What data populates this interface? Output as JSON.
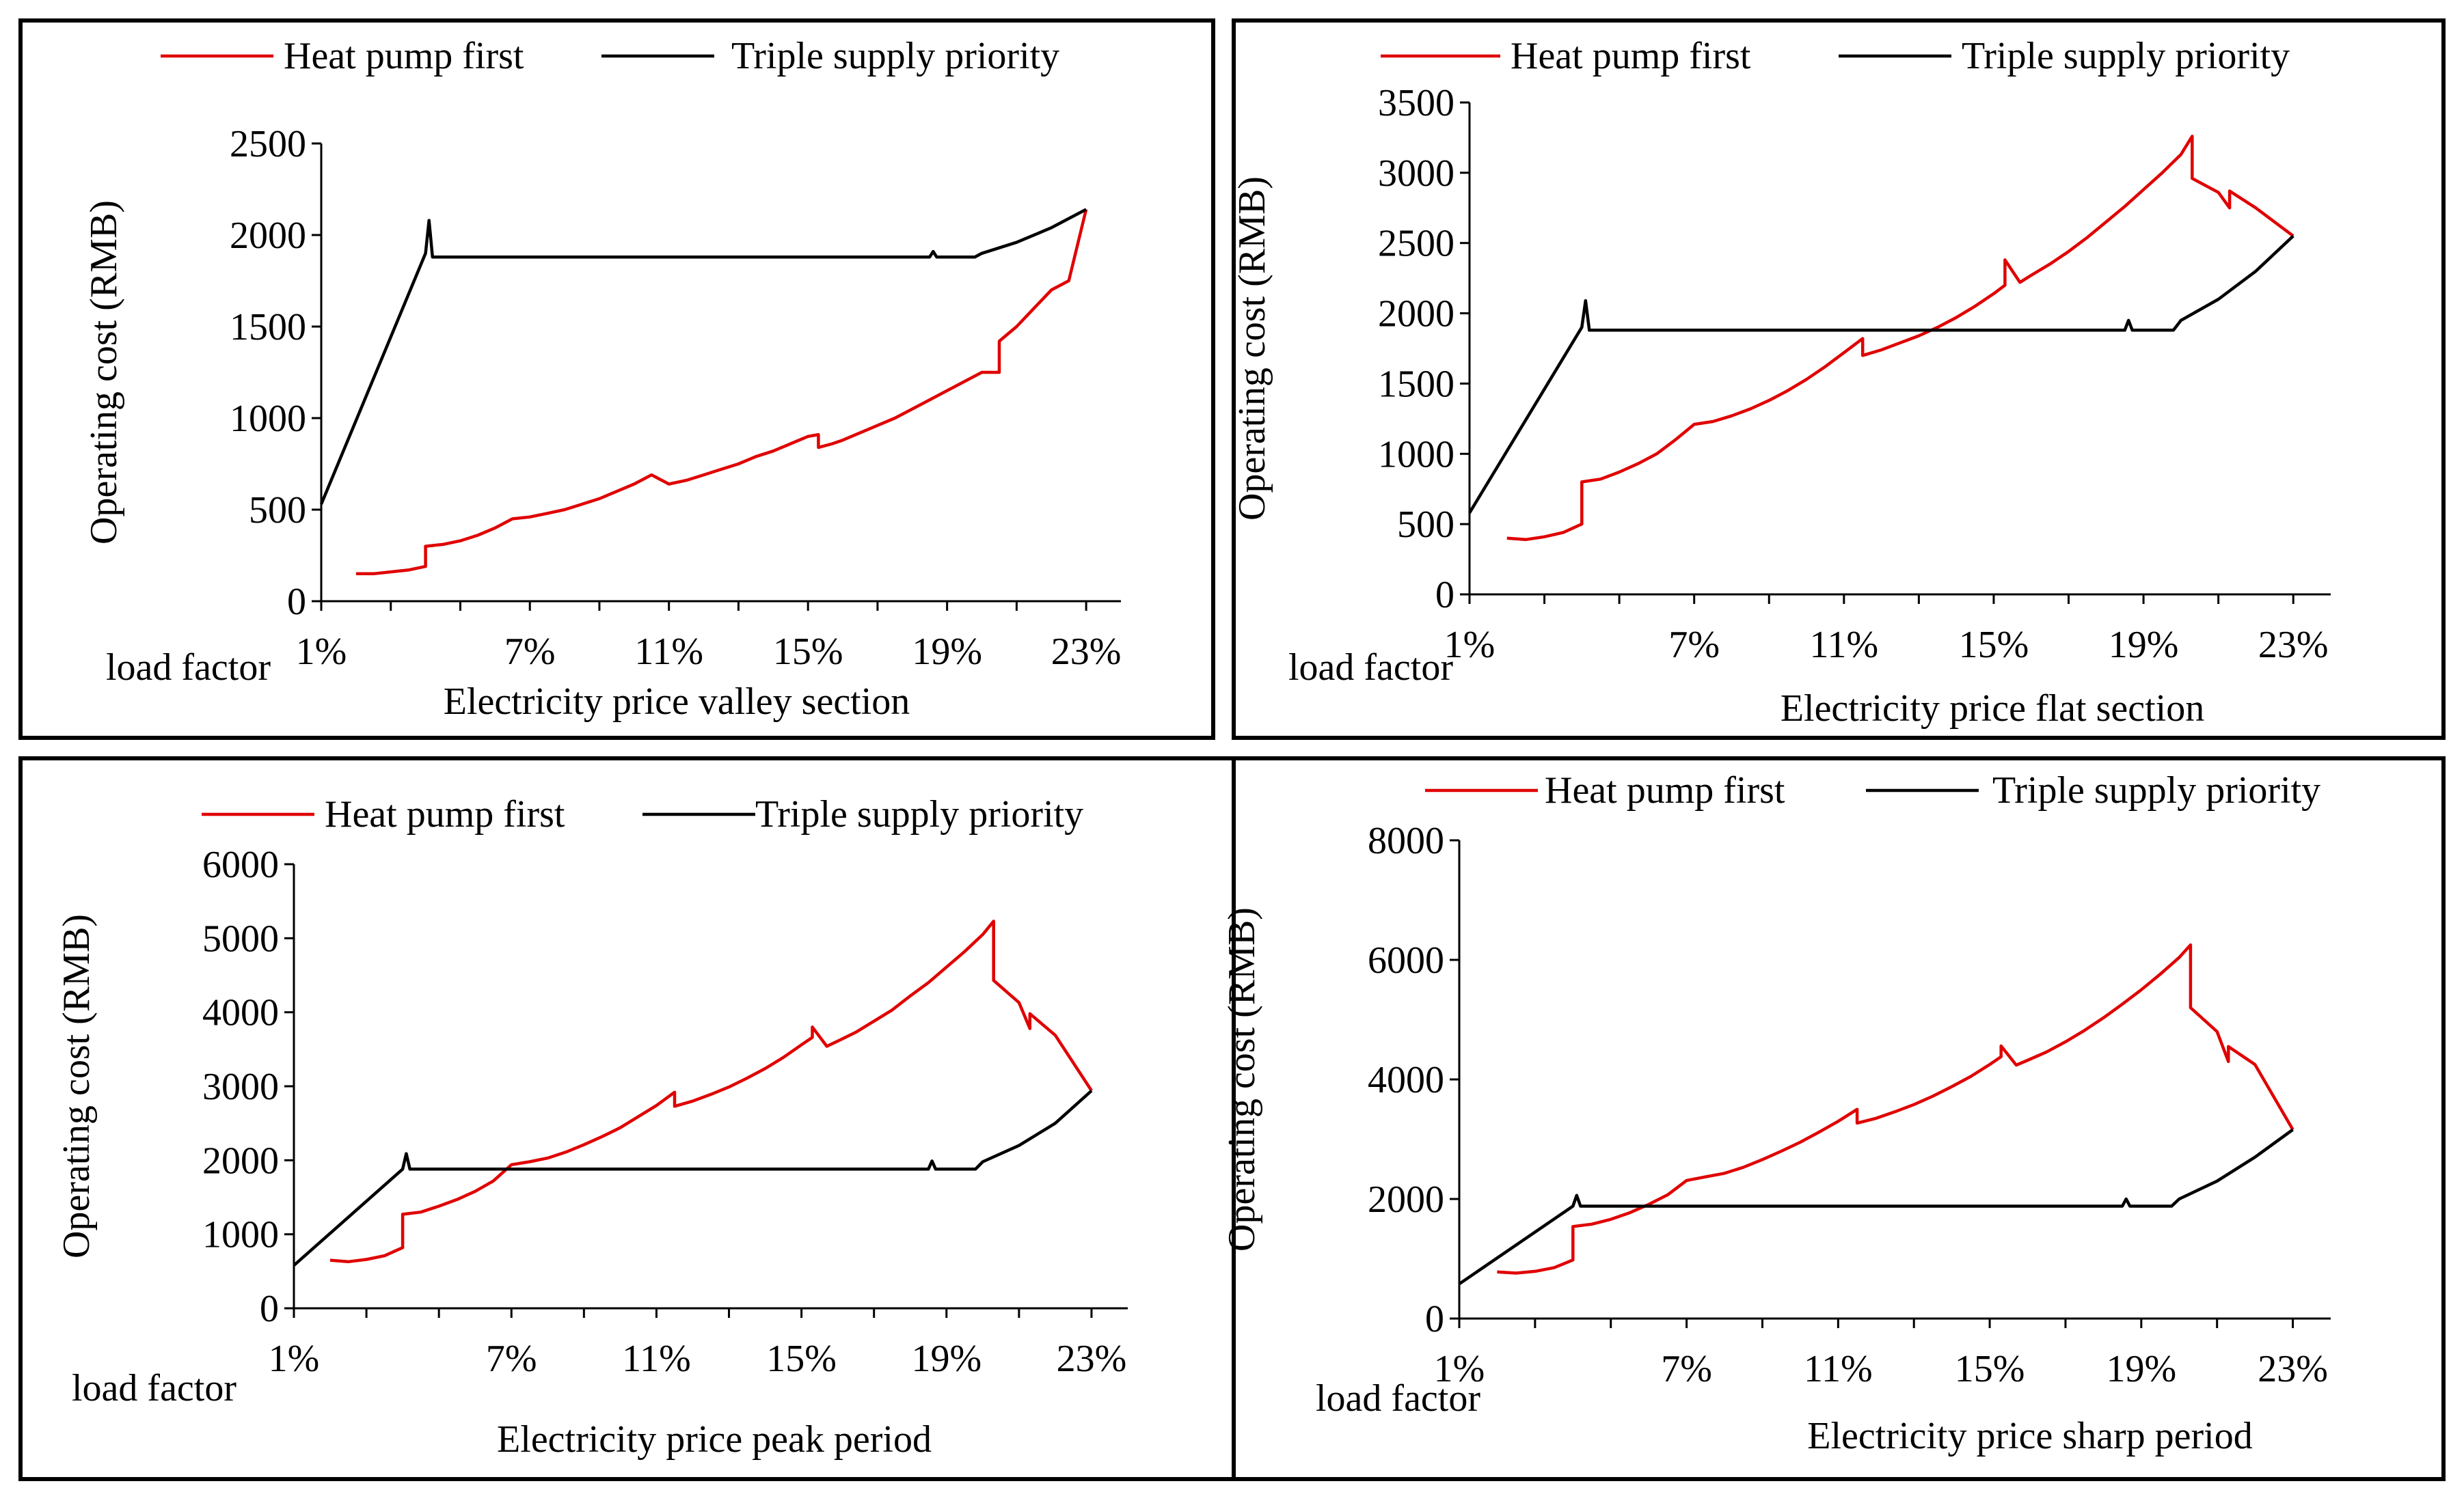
{
  "chart_data": [
    {
      "type": "line",
      "panel": "top-left",
      "xlabel": "Electricity price valley section",
      "x_category_label": "load factor",
      "ylabel": "Operating cost (RMB)",
      "x_tick_labels": [
        "1%",
        "7%",
        "11%",
        "15%",
        "19%",
        "23%"
      ],
      "x_tick_values": [
        1,
        7,
        11,
        15,
        19,
        23
      ],
      "xlim": [
        1,
        24
      ],
      "y_ticks": [
        0,
        500,
        1000,
        1500,
        2000,
        2500
      ],
      "ylim": [
        0,
        2500
      ],
      "legend_position": "top",
      "series": [
        {
          "name": "Heat pump first",
          "color": "#E00000",
          "x": [
            2,
            2.5,
            3,
            3.5,
            4,
            4,
            4.5,
            5,
            5.5,
            6,
            6.5,
            7,
            7.5,
            8,
            8.5,
            9,
            9.5,
            10,
            10.5,
            11,
            11.5,
            11.5,
            12,
            12.5,
            13,
            13.5,
            14,
            14.5,
            15,
            15.3,
            15.3,
            15.7,
            16,
            16.5,
            17,
            17.5,
            18,
            18.5,
            19,
            19.5,
            20,
            20.5,
            20.5,
            21,
            21.5,
            22,
            22.5,
            23
          ],
          "y": [
            150,
            150,
            160,
            170,
            190,
            300,
            310,
            330,
            360,
            400,
            450,
            460,
            480,
            500,
            530,
            560,
            600,
            640,
            690,
            640,
            660,
            660,
            690,
            720,
            750,
            790,
            820,
            860,
            900,
            910,
            840,
            860,
            880,
            920,
            960,
            1000,
            1050,
            1100,
            1150,
            1200,
            1250,
            1250,
            1420,
            1500,
            1600,
            1700,
            1750,
            2140
          ]
        },
        {
          "name": "Triple supply priority",
          "color": "#000000",
          "x": [
            1,
            4,
            4.1,
            4.2,
            18.5,
            18.6,
            18.7,
            19.8,
            20,
            21,
            22,
            23
          ],
          "y": [
            530,
            1900,
            2080,
            1880,
            1880,
            1910,
            1880,
            1880,
            1900,
            1960,
            2040,
            2140
          ]
        }
      ]
    },
    {
      "type": "line",
      "panel": "top-right",
      "xlabel": "Electricity price flat section",
      "x_category_label": "load factor",
      "ylabel": "Operating cost (RMB)",
      "x_tick_labels": [
        "1%",
        "7%",
        "11%",
        "15%",
        "19%",
        "23%"
      ],
      "x_tick_values": [
        1,
        7,
        11,
        15,
        19,
        23
      ],
      "xlim": [
        1,
        24
      ],
      "y_ticks": [
        0,
        500,
        1000,
        1500,
        2000,
        2500,
        3000,
        3500
      ],
      "ylim": [
        0,
        3500
      ],
      "legend_position": "top",
      "series": [
        {
          "name": "Heat pump first",
          "color": "#E00000",
          "x": [
            2,
            2.5,
            3,
            3.5,
            4,
            4,
            4.5,
            5,
            5.5,
            6,
            6.5,
            7,
            7.5,
            8,
            8.5,
            9,
            9.5,
            10,
            10.5,
            11,
            11.5,
            11.5,
            12,
            12.5,
            13,
            13.5,
            14,
            14.5,
            15,
            15.3,
            15.3,
            15.7,
            16,
            16.5,
            17,
            17.5,
            18,
            18.5,
            19,
            19.5,
            20,
            20.3,
            20.3,
            21,
            21.3,
            21.3,
            22,
            23
          ],
          "y": [
            400,
            390,
            410,
            440,
            500,
            800,
            820,
            870,
            930,
            1000,
            1100,
            1210,
            1230,
            1270,
            1320,
            1380,
            1450,
            1530,
            1620,
            1720,
            1820,
            1700,
            1740,
            1790,
            1840,
            1900,
            1970,
            2050,
            2140,
            2200,
            2380,
            2220,
            2270,
            2350,
            2440,
            2540,
            2650,
            2760,
            2880,
            3000,
            3130,
            3260,
            2960,
            2860,
            2750,
            2870,
            2750,
            2550
          ]
        },
        {
          "name": "Triple supply priority",
          "color": "#000000",
          "x": [
            1,
            4,
            4.1,
            4.2,
            18.5,
            18.6,
            18.7,
            19.8,
            20,
            21,
            22,
            23
          ],
          "y": [
            580,
            1900,
            2090,
            1880,
            1880,
            1950,
            1880,
            1880,
            1950,
            2100,
            2300,
            2550
          ]
        }
      ]
    },
    {
      "type": "line",
      "panel": "bottom-left",
      "xlabel": "Electricity price peak period",
      "x_category_label": "load factor",
      "ylabel": "Operating cost (RMB)",
      "x_tick_labels": [
        "1%",
        "7%",
        "11%",
        "15%",
        "19%",
        "23%"
      ],
      "x_tick_values": [
        1,
        7,
        11,
        15,
        19,
        23
      ],
      "xlim": [
        1,
        24
      ],
      "y_ticks": [
        0,
        1000,
        2000,
        3000,
        4000,
        5000,
        6000
      ],
      "ylim": [
        0,
        6000
      ],
      "legend_position": "top",
      "series": [
        {
          "name": "Heat pump first",
          "color": "#E00000",
          "x": [
            2,
            2.5,
            3,
            3.5,
            4,
            4,
            4.5,
            5,
            5.5,
            6,
            6.5,
            7,
            7.5,
            8,
            8.5,
            9,
            9.5,
            10,
            10.5,
            11,
            11.5,
            11.5,
            12,
            12.5,
            13,
            13.5,
            14,
            14.5,
            15,
            15.3,
            15.3,
            15.7,
            16,
            16.5,
            17,
            17.5,
            18,
            18.5,
            19,
            19.5,
            20,
            20.3,
            20.3,
            21,
            21.3,
            21.3,
            22,
            23
          ],
          "y": [
            650,
            630,
            660,
            710,
            820,
            1270,
            1300,
            1380,
            1470,
            1580,
            1720,
            1940,
            1980,
            2030,
            2110,
            2210,
            2320,
            2440,
            2590,
            2740,
            2920,
            2730,
            2800,
            2890,
            2990,
            3110,
            3240,
            3390,
            3560,
            3660,
            3800,
            3540,
            3610,
            3730,
            3880,
            4030,
            4220,
            4400,
            4610,
            4820,
            5050,
            5230,
            4430,
            4130,
            3780,
            3980,
            3690,
            2940
          ]
        },
        {
          "name": "Triple supply priority",
          "color": "#000000",
          "x": [
            1,
            4,
            4.1,
            4.2,
            18.5,
            18.6,
            18.7,
            19.8,
            20,
            21,
            22,
            23
          ],
          "y": [
            580,
            1880,
            2090,
            1880,
            1880,
            1990,
            1880,
            1880,
            1980,
            2200,
            2500,
            2940
          ]
        }
      ]
    },
    {
      "type": "line",
      "panel": "bottom-right",
      "xlabel": "Electricity price sharp period",
      "x_category_label": "load factor",
      "ylabel": "Operating cost (RMB)",
      "x_tick_labels": [
        "1%",
        "7%",
        "11%",
        "15%",
        "19%",
        "23%"
      ],
      "x_tick_values": [
        1,
        7,
        11,
        15,
        19,
        23
      ],
      "xlim": [
        1,
        24
      ],
      "y_ticks": [
        0,
        2000,
        4000,
        6000,
        8000
      ],
      "ylim": [
        0,
        8000
      ],
      "legend_position": "top",
      "series": [
        {
          "name": "Heat pump first",
          "color": "#E00000",
          "x": [
            2,
            2.5,
            3,
            3.5,
            4,
            4,
            4.5,
            5,
            5.5,
            6,
            6.5,
            7,
            7.5,
            8,
            8.5,
            9,
            9.5,
            10,
            10.5,
            11,
            11.5,
            11.5,
            12,
            12.5,
            13,
            13.5,
            14,
            14.5,
            15,
            15.3,
            15.3,
            15.7,
            16,
            16.5,
            17,
            17.5,
            18,
            18.5,
            19,
            19.5,
            20,
            20.3,
            20.3,
            21,
            21.3,
            21.3,
            22,
            23
          ],
          "y": [
            780,
            760,
            790,
            850,
            980,
            1540,
            1580,
            1660,
            1770,
            1910,
            2070,
            2310,
            2370,
            2430,
            2530,
            2660,
            2800,
            2950,
            3120,
            3300,
            3500,
            3270,
            3350,
            3460,
            3580,
            3720,
            3880,
            4050,
            4250,
            4380,
            4560,
            4240,
            4320,
            4460,
            4630,
            4820,
            5030,
            5260,
            5500,
            5760,
            6040,
            6250,
            5200,
            4800,
            4300,
            4550,
            4250,
            3160
          ]
        },
        {
          "name": "Triple supply priority",
          "color": "#000000",
          "x": [
            1,
            4,
            4.1,
            4.2,
            18.5,
            18.6,
            18.7,
            19.8,
            20,
            21,
            22,
            23
          ],
          "y": [
            580,
            1880,
            2060,
            1880,
            1880,
            2000,
            1880,
            1880,
            2000,
            2300,
            2700,
            3160
          ]
        }
      ]
    }
  ]
}
